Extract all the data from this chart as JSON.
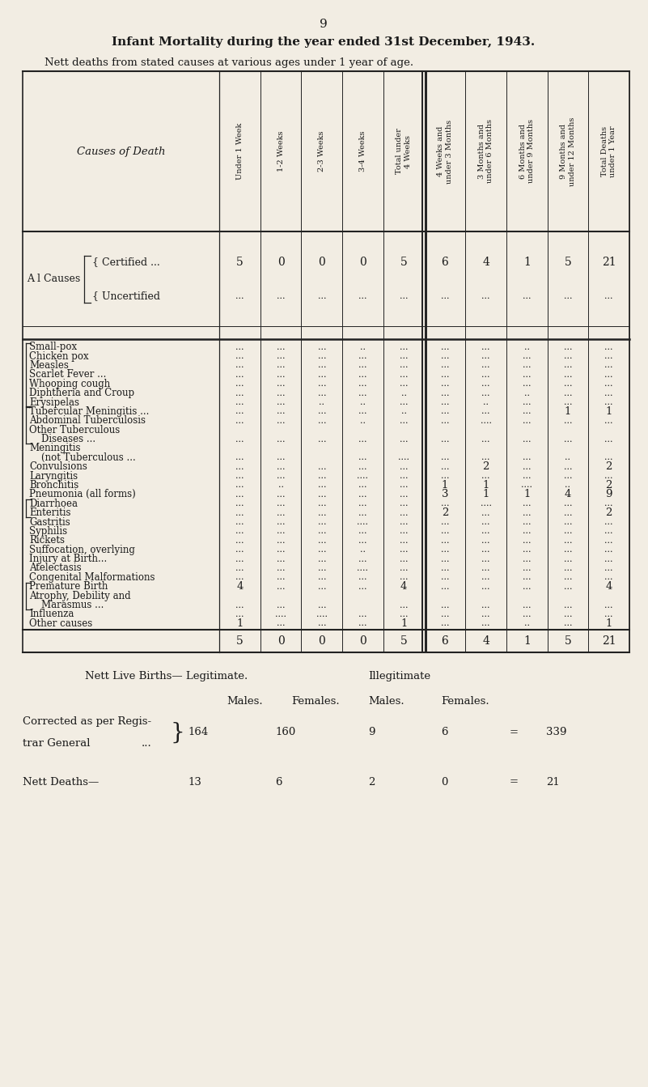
{
  "page_number": "9",
  "title": "Infant Mortality during the year ended 31st December, 1943.",
  "subtitle": "Nett deaths from stated causes at various ages under 1 year of age.",
  "bg_color": "#f2ede3",
  "col_headers": [
    "Under 1 Week",
    "1-2 Weeks",
    "2-3 Weeks",
    "3-4 Weeks",
    "Total under\n4 Weeks",
    "4 Weeks and\nunder 3 Months",
    "3 Months and\nunder 6 Months",
    "6 Months and\nunder 9 Months",
    "9 Months and\nunder 12 Months",
    "Total Deaths\nunder 1 Year"
  ],
  "certified_row": [
    "5",
    "0",
    "0",
    "0",
    "5",
    "6",
    "4",
    "1",
    "5",
    "21"
  ],
  "uncertified_row": [
    "...",
    "...",
    "...",
    "...",
    "...",
    "...",
    "...",
    "...",
    "...",
    "..."
  ],
  "data_rows": [
    {
      "cause": "Small-pox",
      "dots": "...  ...",
      "bracket": "g1",
      "values": [
        "...",
        "...",
        "...",
        "..",
        "...",
        "...",
        "...",
        "..",
        "...",
        "..."
      ]
    },
    {
      "cause": "Chicken pox",
      "dots": "...  ...",
      "bracket": "g1",
      "values": [
        "...",
        "...",
        "...",
        "...",
        "...",
        "...",
        "...",
        "...",
        "...",
        "..."
      ]
    },
    {
      "cause": "Measles",
      "dots": "...  ...",
      "bracket": "g1",
      "values": [
        "...",
        "...",
        "...",
        "...",
        "...",
        "...",
        "...",
        "...",
        "...",
        "..."
      ]
    },
    {
      "cause": "Scarlet Fever ...",
      "dots": "...",
      "bracket": "g1",
      "values": [
        "...",
        "...",
        "...",
        "...",
        "...",
        "...",
        "...",
        "...",
        "...",
        "..."
      ]
    },
    {
      "cause": "Whooping cough",
      "dots": "...",
      "bracket": "g1",
      "values": [
        "...",
        "...",
        "...",
        "...",
        "...",
        "...",
        "...",
        "...",
        "...",
        "..."
      ]
    },
    {
      "cause": "Diphtheria and Croup",
      "dots": "...",
      "bracket": "g1",
      "values": [
        "...",
        "...",
        "...",
        "...",
        "..",
        "...",
        "...",
        "..",
        "...",
        "..."
      ]
    },
    {
      "cause": "Erysipelas",
      "dots": "...  ...",
      "bracket": "g1",
      "values": [
        "...",
        "...",
        "..",
        "..",
        "...",
        "...",
        "..",
        "...",
        "...",
        "..."
      ]
    },
    {
      "cause": "Tubercular Meningitis ...",
      "dots": "",
      "bracket": "g2",
      "values": [
        "...",
        "...",
        "...",
        "...",
        "..",
        "...",
        "...",
        "...",
        "1",
        "1"
      ]
    },
    {
      "cause": "Abdominal Tuberculosis",
      "dots": "",
      "bracket": "g2",
      "values": [
        "...",
        "...",
        "...",
        "..",
        "...",
        "...",
        "....",
        "...",
        "...",
        "..."
      ]
    },
    {
      "cause": "Other Tuberculous",
      "dots": "",
      "bracket": "g2",
      "values": [
        "",
        "",
        "",
        "",
        "",
        "",
        "",
        "",
        "",
        ""
      ]
    },
    {
      "cause": "    Diseases ...",
      "dots": "...",
      "bracket": "g2",
      "values": [
        "...",
        "...",
        "...",
        "...",
        "...",
        "...",
        "...",
        "...",
        "...",
        "..."
      ]
    },
    {
      "cause": "Meningitis",
      "dots": "",
      "bracket": "none",
      "values": [
        "",
        "",
        "",
        "",
        "",
        "",
        "",
        "",
        "",
        ""
      ]
    },
    {
      "cause": "    (not Tuberculous ...",
      "dots": "",
      "bracket": "none",
      "values": [
        "...",
        "...",
        "",
        "...",
        "....",
        "...",
        "...",
        "...",
        "..",
        "..."
      ]
    },
    {
      "cause": "Convulsions",
      "dots": "...  ...",
      "bracket": "none",
      "values": [
        "...",
        "...",
        "...",
        "...",
        "...",
        "...",
        "2",
        "...",
        "...",
        "2"
      ]
    },
    {
      "cause": "Laryngitis",
      "dots": "...  ...",
      "bracket": "none",
      "values": [
        "...",
        "...",
        "...",
        "....",
        "...",
        "...",
        "...",
        "...",
        "...",
        "..."
      ]
    },
    {
      "cause": "Bronchitis",
      "dots": "...  ...",
      "bracket": "none",
      "values": [
        "...",
        "..",
        "...",
        "...",
        "...",
        "1",
        "1",
        "....",
        "..",
        "2"
      ]
    },
    {
      "cause": "Pneumonia (all forms)",
      "dots": "...",
      "bracket": "none",
      "values": [
        "...",
        "...",
        "...",
        "...",
        "...",
        "3",
        "1",
        "1",
        "4",
        "9"
      ]
    },
    {
      "cause": "Diarrhoea",
      "dots": "...  ...",
      "bracket": "g3",
      "values": [
        "...",
        "...",
        "...",
        "...",
        "...",
        "...",
        "....",
        "...",
        "...",
        "..."
      ]
    },
    {
      "cause": "Enteritis",
      "dots": "...  ...",
      "bracket": "g3",
      "values": [
        "...",
        "...",
        "...",
        "...",
        "...",
        "2",
        "...",
        "...",
        "...",
        "2"
      ]
    },
    {
      "cause": "Gastritis",
      "dots": "...  ...",
      "bracket": "none",
      "values": [
        "...",
        "...",
        "...",
        "....",
        "...",
        "...",
        "...",
        "...",
        "...",
        "..."
      ]
    },
    {
      "cause": "Syphilis",
      "dots": "...  ...",
      "bracket": "none",
      "values": [
        "...",
        "...",
        "...",
        "...",
        "...",
        "...",
        "...",
        "...",
        "...",
        "..."
      ]
    },
    {
      "cause": "Rickets",
      "dots": "...  ...",
      "bracket": "none",
      "values": [
        "...",
        "...",
        "...",
        "...",
        "...",
        "...",
        "...",
        "...",
        "...",
        "..."
      ]
    },
    {
      "cause": "Suffocation, overlying",
      "dots": "...",
      "bracket": "none",
      "values": [
        "...",
        "...",
        "...",
        "..",
        "...",
        "...",
        "...",
        "...",
        "...",
        "..."
      ]
    },
    {
      "cause": "Injury at Birth...",
      "dots": "...",
      "bracket": "none",
      "values": [
        "...",
        "...",
        "...",
        "...",
        "...",
        "...",
        "...",
        "...",
        "...",
        "..."
      ]
    },
    {
      "cause": "Atelectasis",
      "dots": "...  ...",
      "bracket": "none",
      "values": [
        "...",
        "...",
        "...",
        "....",
        "...",
        "...",
        "...",
        "...",
        "...",
        "..."
      ]
    },
    {
      "cause": "Congenital Malformations",
      "dots": "",
      "bracket": "none",
      "values": [
        "...",
        "...",
        "...",
        "...",
        "...",
        "...",
        "...",
        "...",
        "...",
        "..."
      ]
    },
    {
      "cause": "Premature Birth",
      "dots": "...",
      "bracket": "g4",
      "values": [
        "4",
        "...",
        "...",
        "...",
        "4",
        "...",
        "...",
        "...",
        "...",
        "4"
      ]
    },
    {
      "cause": "Atrophy, Debility and",
      "dots": "",
      "bracket": "g4",
      "values": [
        "",
        "",
        "",
        "",
        "",
        "",
        "",
        "",
        "",
        ""
      ]
    },
    {
      "cause": "    Marasmus ...",
      "dots": "...",
      "bracket": "g4",
      "values": [
        "...",
        "...",
        "...",
        "",
        "...",
        "...",
        "...",
        "...",
        "...",
        "..."
      ]
    },
    {
      "cause": "Influenza",
      "dots": "...  ...",
      "bracket": "none",
      "values": [
        "...",
        "....",
        "....",
        "...",
        "...",
        "...",
        "...",
        "...",
        "...",
        "..."
      ]
    },
    {
      "cause": "Other causes",
      "dots": "...  ...",
      "bracket": "none",
      "values": [
        "1",
        "...",
        "...",
        "...",
        "1",
        "...",
        "...",
        "..",
        "...",
        "1"
      ]
    }
  ],
  "totals_row": [
    "5",
    "0",
    "0",
    "0",
    "5",
    "6",
    "4",
    "1",
    "5",
    "21"
  ],
  "footer": {
    "line1_left": "Nett Live Births— Legitimate.",
    "line1_right": "Illegitimate",
    "line2_males_leg": "Males.",
    "line2_females_leg": "Females.",
    "line2_males_illeg": "Males.",
    "line2_females_illeg": "Females.",
    "line3_label1": "Corrected as per Regis-",
    "line3_label2": "trar General",
    "line3_label3": "...",
    "leg_males": "164",
    "leg_females": "160",
    "illeg_males": "9",
    "illeg_females": "6",
    "eq1": "=",
    "total1": "339",
    "nett_deaths_label": "Nett Deaths—",
    "nd_leg_males": "13",
    "nd_leg_females": "6",
    "nd_illeg_males": "2",
    "nd_illeg_females": "0",
    "eq2": "=",
    "nd_total": "21"
  }
}
